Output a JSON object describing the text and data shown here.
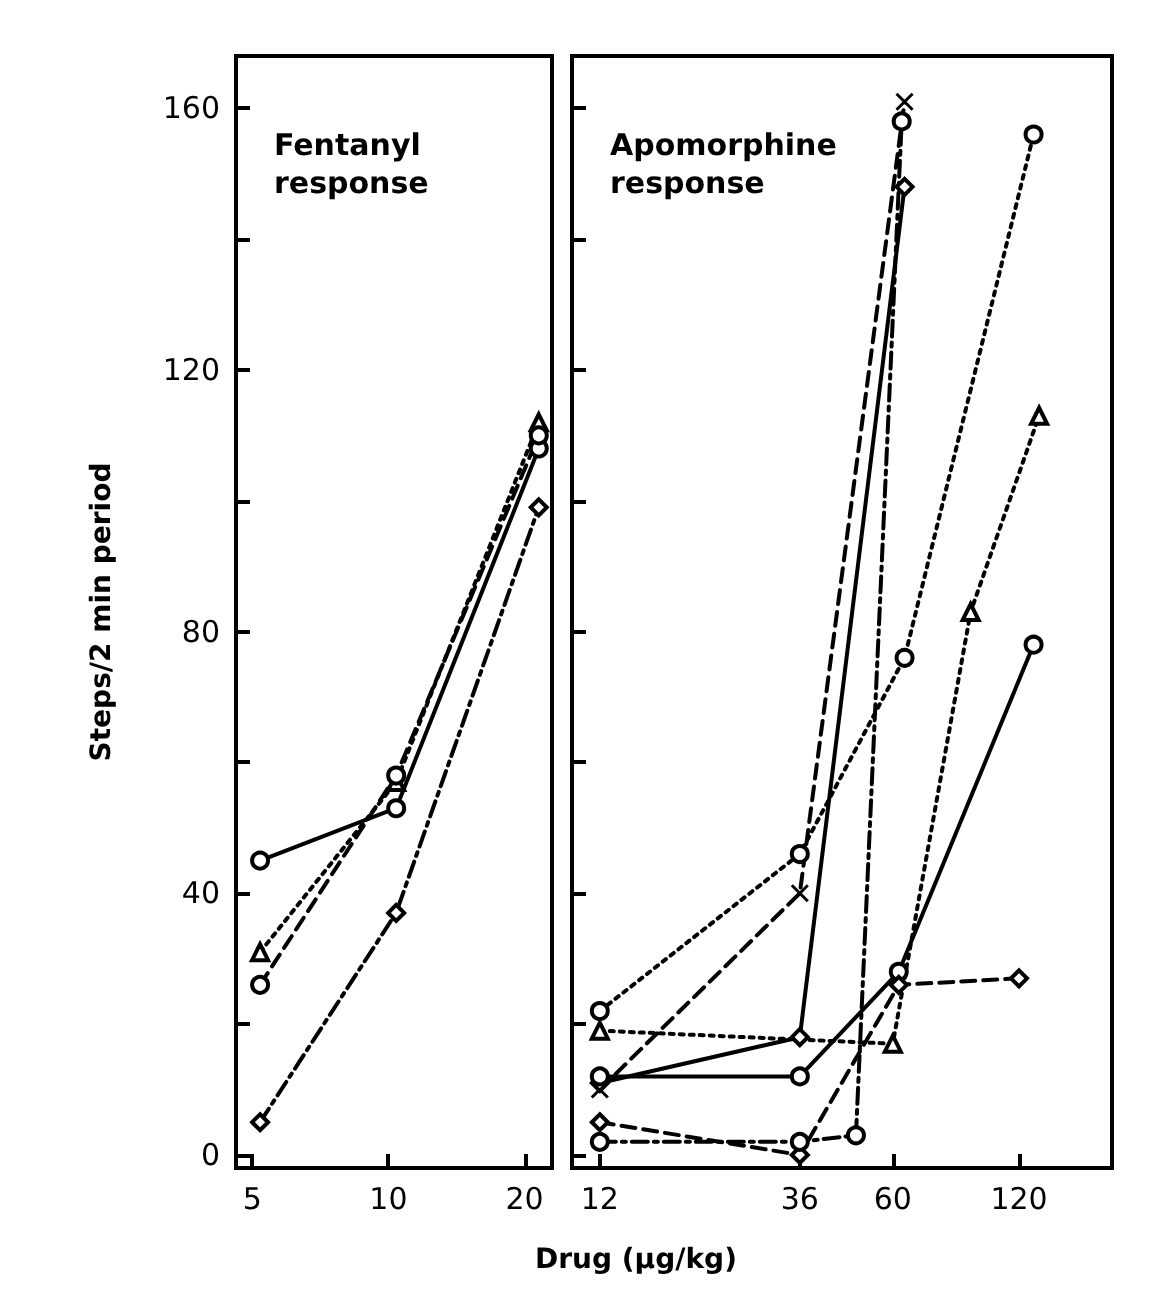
{
  "chart_data": [
    {
      "type": "line",
      "title": "Fentanyl\nresponse",
      "xlabel": "Drug (μg/kg)",
      "ylabel": "Steps/2 min period",
      "log": "x",
      "xlim": [
        4.6,
        23
      ],
      "xticks": [
        5,
        10,
        20
      ],
      "ylim": [
        -2,
        168
      ],
      "yticks": [
        0,
        {
          "value": 20,
          "label": null
        },
        40,
        {
          "value": 60,
          "label": null
        },
        80,
        {
          "value": 100,
          "label": null
        },
        120,
        {
          "value": 140,
          "label": null
        },
        160
      ],
      "series": [
        {
          "color": "#000000",
          "marker": "circle",
          "line_style": "solid",
          "x": [
            5.2,
            10.4,
            21.5
          ],
          "values": [
            45,
            53,
            108
          ]
        },
        {
          "color": "#000000",
          "marker": "triangle",
          "line_style": "dotted",
          "x": [
            5.2,
            10.4,
            21.5
          ],
          "values": [
            31,
            57,
            112
          ]
        },
        {
          "color": "#000000",
          "marker": "circle",
          "line_style": "dashed",
          "x": [
            5.2,
            10.4,
            21.5
          ],
          "values": [
            26,
            58,
            110
          ]
        },
        {
          "color": "#000000",
          "marker": "diamond",
          "line_style": "dashdot",
          "x": [
            5.2,
            10.4,
            21.5
          ],
          "values": [
            5,
            37,
            99
          ]
        }
      ]
    },
    {
      "type": "line",
      "title": "Apomorphine\nresponse",
      "log": "x",
      "xlim": [
        10.3,
        200
      ],
      "xticks": [
        12,
        36,
        60,
        120
      ],
      "ylim": [
        -2,
        168
      ],
      "yticks": [
        {
          "value": 0,
          "label": null
        },
        {
          "value": 20,
          "label": null
        },
        {
          "value": 40,
          "label": null
        },
        {
          "value": 60,
          "label": null
        },
        {
          "value": 80,
          "label": null
        },
        {
          "value": 100,
          "label": null
        },
        {
          "value": 120,
          "label": null
        },
        {
          "value": 140,
          "label": null
        },
        {
          "value": 160,
          "label": null
        }
      ],
      "tick_labels": "x",
      "series": [
        {
          "color": "#000000",
          "marker": "circle",
          "line_style": "dotted",
          "x": [
            12,
            36,
            64,
            130
          ],
          "values": [
            22,
            46,
            76,
            156
          ]
        },
        {
          "color": "#000000",
          "marker": "cross",
          "line_style": "dashed",
          "x": [
            12,
            36,
            64
          ],
          "values": [
            10,
            40,
            161
          ]
        },
        {
          "color": "#000000",
          "marker": "diamond",
          "line_style": "solid",
          "x": [
            12,
            36,
            64
          ],
          "values": [
            11,
            18,
            148
          ]
        },
        {
          "color": "#000000",
          "marker": "triangle",
          "line_style": "dotted",
          "x": [
            12,
            60,
            92,
            134
          ],
          "values": [
            19,
            17,
            83,
            113
          ]
        },
        {
          "color": "#000000",
          "marker": "circle",
          "line_style": "solid",
          "x": [
            12,
            36,
            62,
            130
          ],
          "values": [
            12,
            12,
            28,
            78
          ]
        },
        {
          "color": "#000000",
          "marker": "diamond",
          "line_style": "dashed",
          "x": [
            12,
            36,
            62,
            120
          ],
          "values": [
            5,
            0,
            26,
            27
          ]
        },
        {
          "color": "#000000",
          "marker": "circle",
          "line_style": "dashdot",
          "x": [
            12,
            36,
            49,
            63
          ],
          "values": [
            2,
            2,
            3,
            158
          ]
        }
      ]
    }
  ]
}
